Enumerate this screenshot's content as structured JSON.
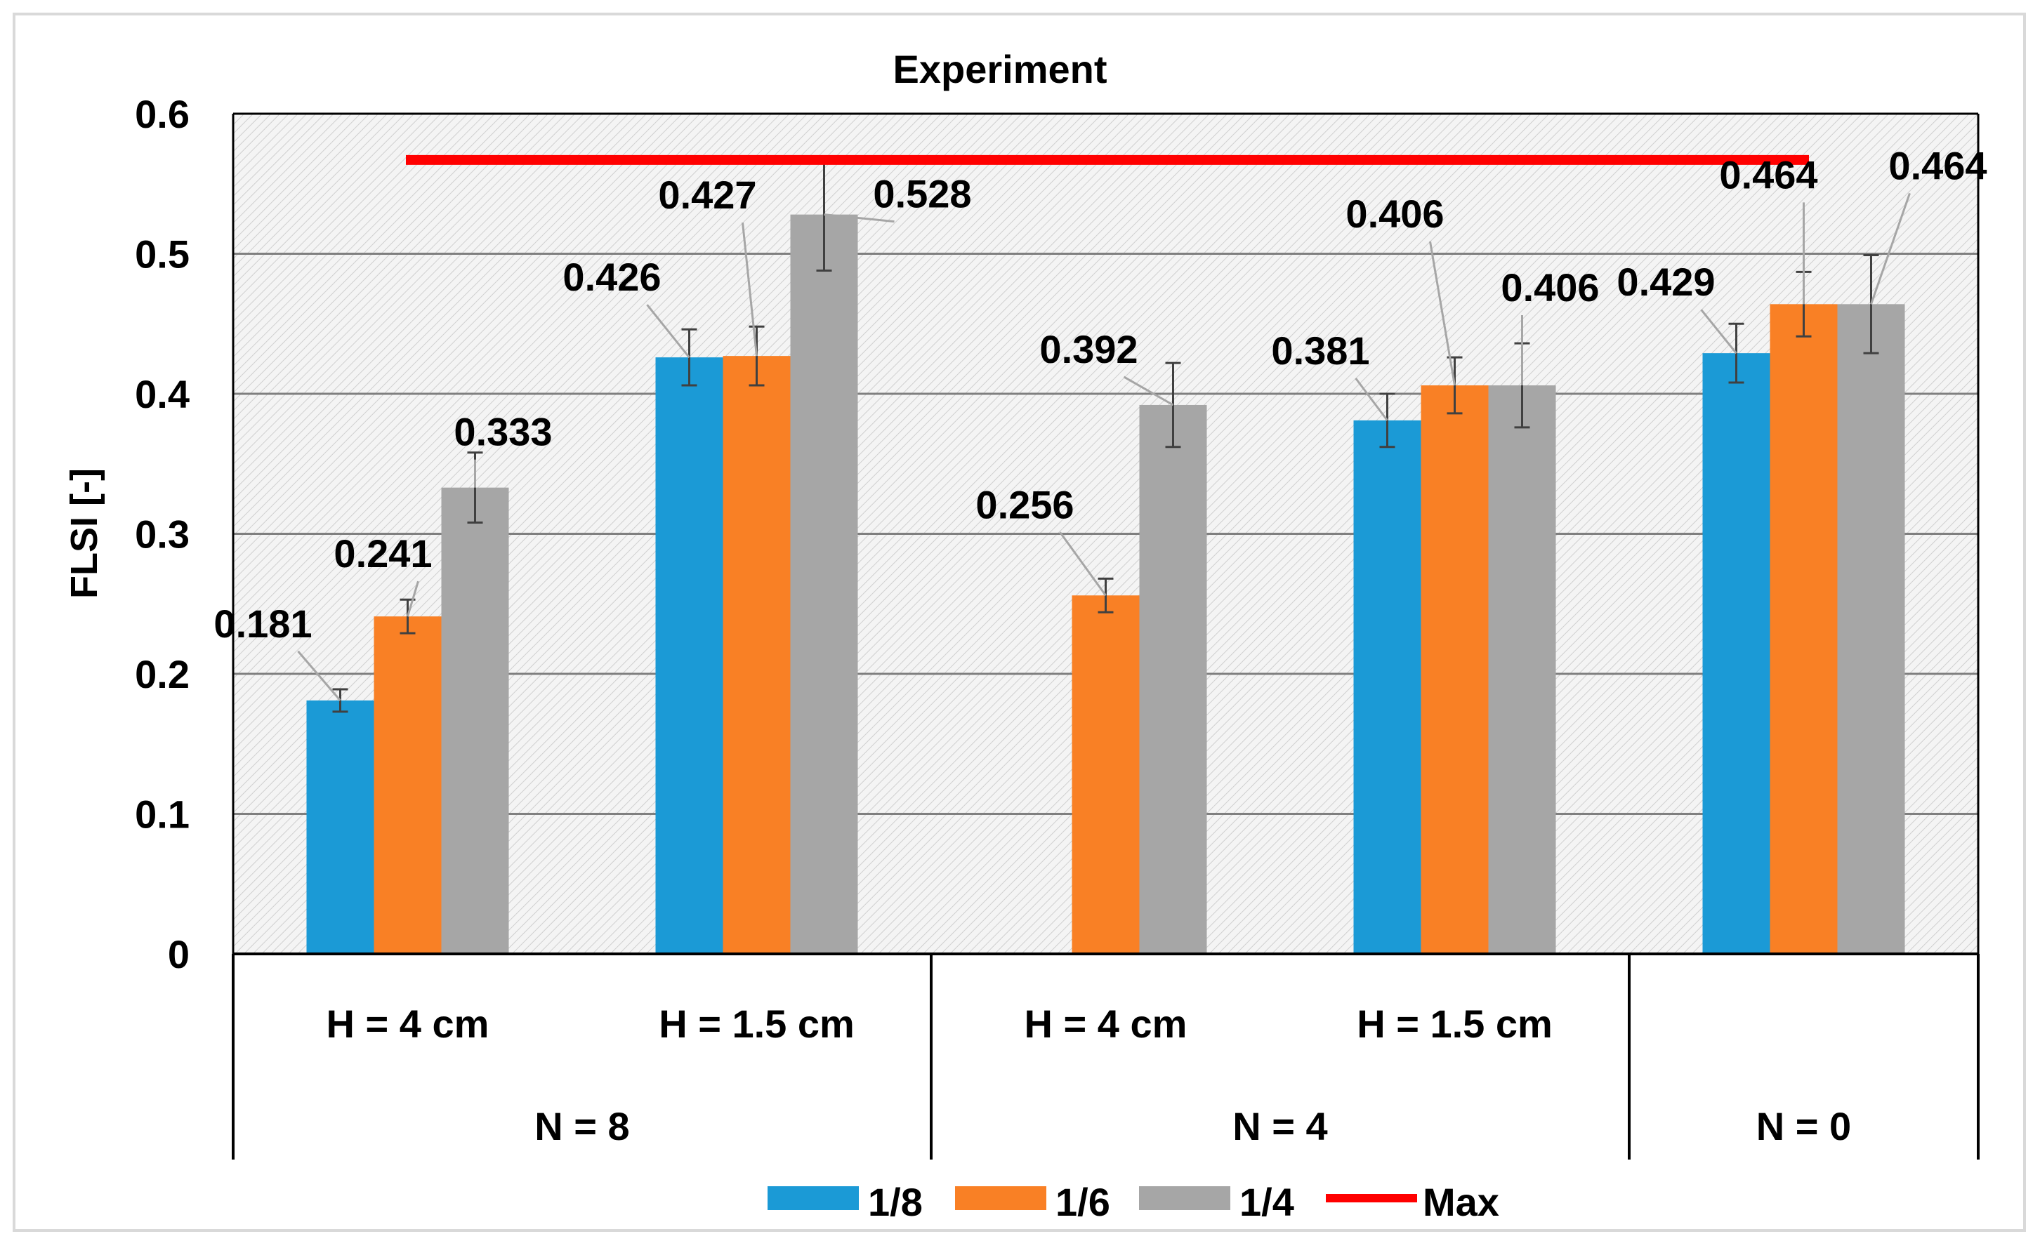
{
  "chart_data": {
    "type": "bar",
    "title": "Experiment",
    "ylabel": "FLSI [-]",
    "xlabel": "",
    "ylim": [
      0,
      0.6
    ],
    "yticks": [
      0,
      0.1,
      0.2,
      0.3,
      0.4,
      0.5,
      0.6
    ],
    "ytick_labels": [
      "0",
      "0.1",
      "0.2",
      "0.3",
      "0.4",
      "0.5",
      "0.6"
    ],
    "grid": "horizontal",
    "legend_position": "bottom",
    "categories": [
      {
        "sub": "H = 4 cm",
        "group": "N = 8"
      },
      {
        "sub": "H = 1.5 cm",
        "group": "N = 8"
      },
      {
        "sub": "H = 4 cm",
        "group": "N = 4"
      },
      {
        "sub": "H = 1.5 cm",
        "group": "N = 4"
      },
      {
        "sub": "",
        "group": "N = 0"
      }
    ],
    "groups": [
      {
        "label": "N = 8",
        "span": 2
      },
      {
        "label": "N = 4",
        "span": 2
      },
      {
        "label": "N = 0",
        "span": 1
      }
    ],
    "series": [
      {
        "name": "1/8",
        "color": "#1b9ad6",
        "values": [
          0.181,
          0.426,
          null,
          0.381,
          0.429
        ],
        "labels": [
          "0.181",
          "0.426",
          "",
          "0.381",
          "0.429"
        ],
        "errors": [
          0.008,
          0.02,
          null,
          0.019,
          0.021
        ]
      },
      {
        "name": "1/6",
        "color": "#f98025",
        "values": [
          0.241,
          0.427,
          0.256,
          0.406,
          0.464
        ],
        "labels": [
          "0.241",
          "0.427",
          "0.256",
          "0.406",
          "0.464"
        ],
        "errors": [
          0.012,
          0.021,
          0.012,
          0.02,
          0.023
        ]
      },
      {
        "name": "1/4",
        "color": "#a6a6a6",
        "values": [
          0.333,
          0.528,
          0.392,
          0.406,
          0.464
        ],
        "labels": [
          "0.333",
          "0.528",
          "0.392",
          "0.406",
          "0.464"
        ],
        "errors": [
          0.025,
          0.04,
          0.03,
          0.03,
          0.035
        ]
      }
    ],
    "max_line": {
      "name": "Max",
      "value": 0.567,
      "color": "#ff0000"
    }
  }
}
